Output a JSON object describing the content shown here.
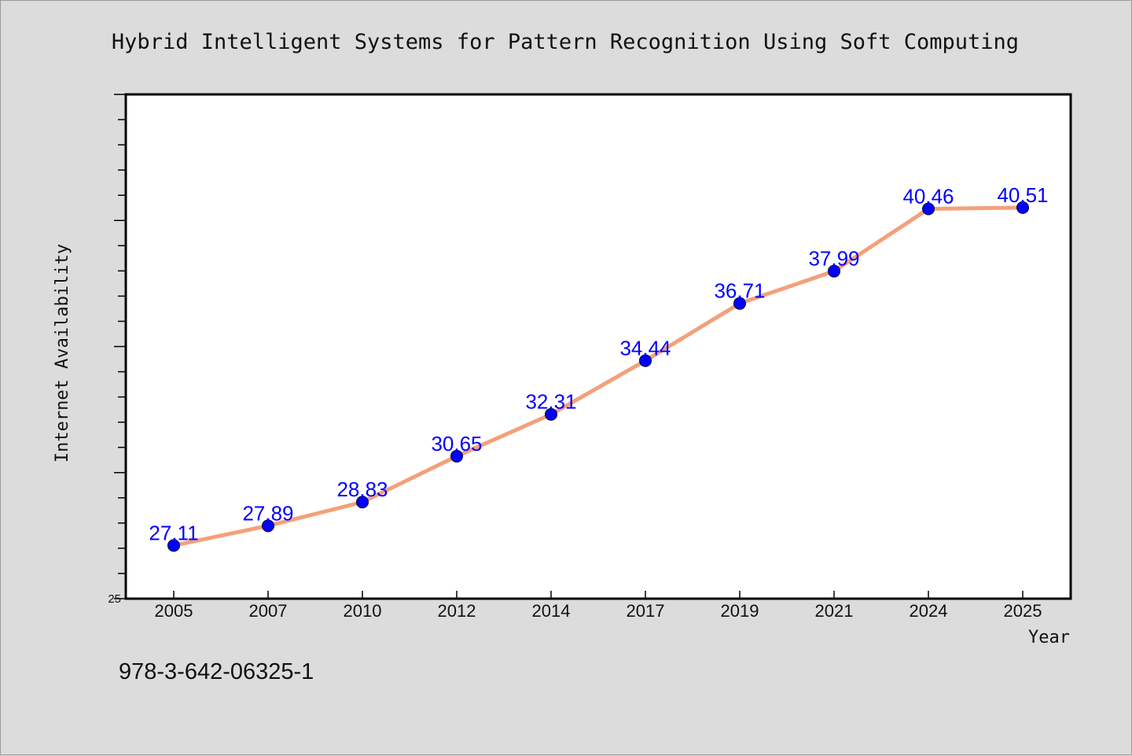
{
  "chart_data": {
    "type": "line",
    "title": "Hybrid Intelligent Systems for Pattern Recognition Using Soft Computing",
    "xlabel": "Year",
    "ylabel": "Internet Availability",
    "categories": [
      "2005",
      "2007",
      "2010",
      "2012",
      "2014",
      "2017",
      "2019",
      "2021",
      "2024",
      "2025"
    ],
    "series": [
      {
        "values": [
          27.11,
          27.89,
          28.83,
          30.65,
          32.31,
          34.44,
          36.71,
          37.99,
          40.46,
          40.51
        ]
      }
    ],
    "data_labels": [
      "27.11",
      "27.89",
      "28.83",
      "30.65",
      "32.31",
      "34.44",
      "36.71",
      "37.99",
      "40.46",
      "40.51"
    ],
    "y_tick_labels": [
      "25"
    ],
    "ylim": [
      25,
      45
    ],
    "grid": false,
    "legend": "none",
    "colors": {
      "line": "#f4a07a",
      "marker": "#0000ff",
      "data_label": "#0000ff",
      "plot_background": "#ffffff",
      "page_background": "#dcdcdc"
    }
  },
  "footer": {
    "isbn": "978-3-642-06325-1"
  }
}
